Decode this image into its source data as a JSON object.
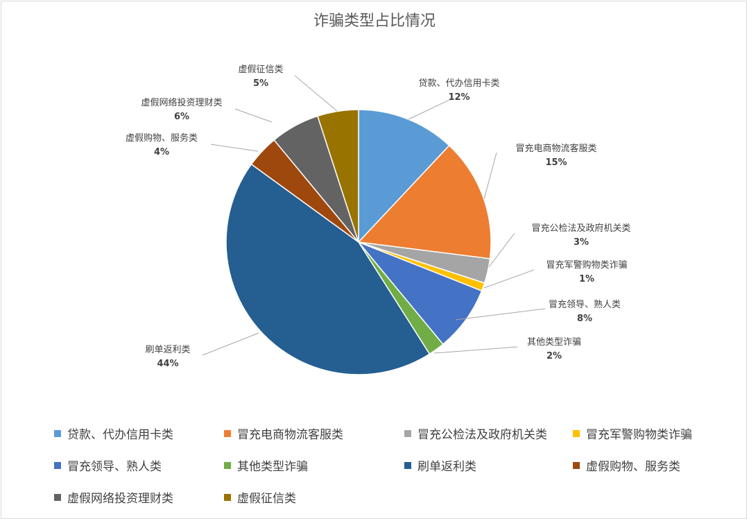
{
  "chart_data": {
    "type": "pie",
    "title": "诈骗类型占比情况",
    "legend_position": "bottom",
    "slices": [
      {
        "label": "贷款、代办信用卡类",
        "value": 12,
        "value_label": "12%",
        "color": "#5B9BD5"
      },
      {
        "label": "冒充电商物流客服类",
        "value": 15,
        "value_label": "15%",
        "color": "#ED7D31"
      },
      {
        "label": "冒充公检法及政府机关类",
        "value": 3,
        "value_label": "3%",
        "color": "#A5A5A5"
      },
      {
        "label": "冒充军警购物类诈骗",
        "value": 1,
        "value_label": "1%",
        "color": "#FFC000"
      },
      {
        "label": "冒充领导、熟人类",
        "value": 8,
        "value_label": "8%",
        "color": "#4472C4"
      },
      {
        "label": "其他类型诈骗",
        "value": 2,
        "value_label": "2%",
        "color": "#70AD47"
      },
      {
        "label": "刷单返利类",
        "value": 44,
        "value_label": "44%",
        "color": "#255E91"
      },
      {
        "label": "虚假购物、服务类",
        "value": 4,
        "value_label": "4%",
        "color": "#9E480E"
      },
      {
        "label": "虚假网络投资理财类",
        "value": 6,
        "value_label": "6%",
        "color": "#636363"
      },
      {
        "label": "虚假征信类",
        "value": 5,
        "value_label": "5%",
        "color": "#997300"
      }
    ]
  }
}
